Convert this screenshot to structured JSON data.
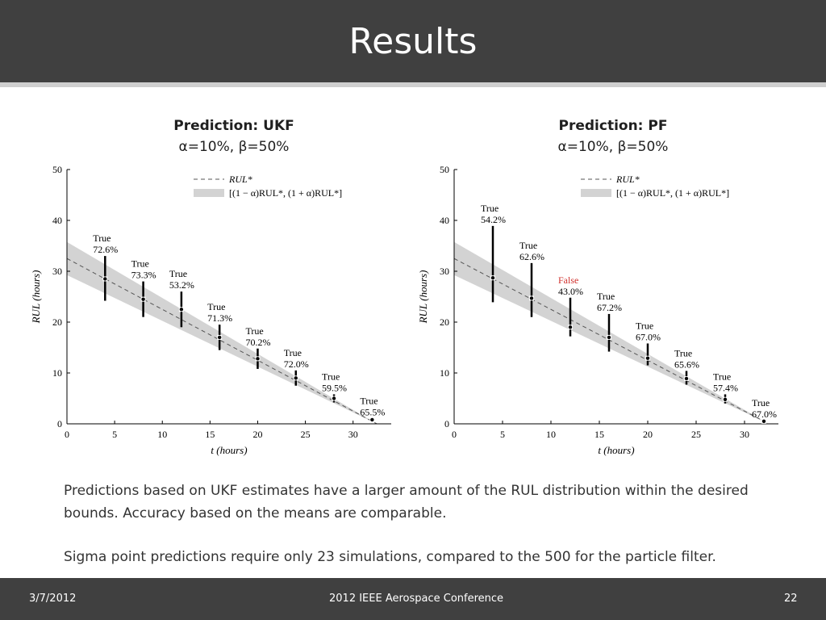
{
  "slide": {
    "title": "Results",
    "text1": "Predictions based on UKF estimates have a larger amount of the RUL distribution within the desired bounds. Accuracy based on the means are comparable.",
    "text2": "Sigma point predictions require only 23 simulations, compared to the 500 for the particle filter.",
    "footer_date": "3/7/2012",
    "footer_center": "2012 IEEE Aerospace Conference",
    "page_number": "22"
  },
  "colors": {
    "header_bg": "#404040",
    "band": "#d3d3d3",
    "false_label": "#d0312d"
  },
  "chart_data": [
    {
      "type": "scatter",
      "title": "Prediction: UKF",
      "subtitle": "α=10%, β=50%",
      "xlabel": "t (hours)",
      "ylabel": "RUL (hours)",
      "xlim": [
        0,
        34
      ],
      "ylim": [
        0,
        50
      ],
      "xticks": [
        0,
        5,
        10,
        15,
        20,
        25,
        30
      ],
      "yticks": [
        0,
        10,
        20,
        30,
        40,
        50
      ],
      "legend": {
        "position": "top-right",
        "entries": [
          "RUL*",
          "[(1 − α)RUL*, (1 + α)RUL*]"
        ]
      },
      "true_rul": {
        "intercept": 32.5,
        "slope": -1
      },
      "points": [
        {
          "x": 4,
          "mean": 28.5,
          "low": 24.2,
          "high": 33.0,
          "label": "True",
          "pct": "72.6%"
        },
        {
          "x": 8,
          "mean": 24.5,
          "low": 21.0,
          "high": 28.0,
          "label": "True",
          "pct": "73.3%"
        },
        {
          "x": 12,
          "mean": 22.5,
          "low": 19.0,
          "high": 26.0,
          "label": "True",
          "pct": "53.2%"
        },
        {
          "x": 16,
          "mean": 17.0,
          "low": 14.5,
          "high": 19.5,
          "label": "True",
          "pct": "71.3%"
        },
        {
          "x": 20,
          "mean": 12.8,
          "low": 10.8,
          "high": 14.8,
          "label": "True",
          "pct": "70.2%"
        },
        {
          "x": 24,
          "mean": 9.0,
          "low": 7.5,
          "high": 10.5,
          "label": "True",
          "pct": "72.0%"
        },
        {
          "x": 28,
          "mean": 5.0,
          "low": 4.2,
          "high": 5.8,
          "label": "True",
          "pct": "59.5%"
        },
        {
          "x": 32,
          "mean": 0.8,
          "low": 0.6,
          "high": 1.0,
          "label": "True",
          "pct": "65.5%"
        }
      ]
    },
    {
      "type": "scatter",
      "title": "Prediction: PF",
      "subtitle": "α=10%, β=50%",
      "xlabel": "t (hours)",
      "ylabel": "RUL (hours)",
      "xlim": [
        0,
        33.5
      ],
      "ylim": [
        0,
        50
      ],
      "xticks": [
        0,
        5,
        10,
        15,
        20,
        25,
        30
      ],
      "yticks": [
        0,
        10,
        20,
        30,
        40,
        50
      ],
      "legend": {
        "position": "top-right",
        "entries": [
          "RUL*",
          "[(1 − α)RUL*, (1 + α)RUL*]"
        ]
      },
      "true_rul": {
        "intercept": 32.5,
        "slope": -1
      },
      "points": [
        {
          "x": 4,
          "mean": 28.7,
          "low": 23.9,
          "high": 38.9,
          "label": "True",
          "pct": "54.2%"
        },
        {
          "x": 8,
          "mean": 24.7,
          "low": 21.0,
          "high": 31.6,
          "label": "True",
          "pct": "62.6%"
        },
        {
          "x": 12,
          "mean": 19.0,
          "low": 17.2,
          "high": 24.8,
          "label": "False",
          "pct": "43.0%"
        },
        {
          "x": 16,
          "mean": 17.0,
          "low": 14.2,
          "high": 21.6,
          "label": "True",
          "pct": "67.2%"
        },
        {
          "x": 20,
          "mean": 12.9,
          "low": 11.5,
          "high": 15.8,
          "label": "True",
          "pct": "67.0%"
        },
        {
          "x": 24,
          "mean": 8.9,
          "low": 7.7,
          "high": 10.4,
          "label": "True",
          "pct": "65.6%"
        },
        {
          "x": 28,
          "mean": 4.8,
          "low": 4.0,
          "high": 5.8,
          "label": "True",
          "pct": "57.4%"
        },
        {
          "x": 32,
          "mean": 0.5,
          "low": 0.4,
          "high": 0.6,
          "label": "True",
          "pct": "67.0%"
        }
      ]
    }
  ]
}
